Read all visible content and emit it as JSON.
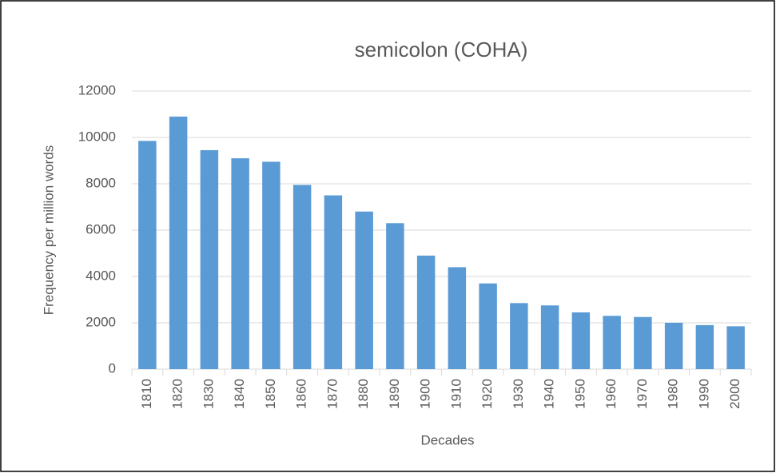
{
  "chart_data": {
    "type": "bar",
    "title": "semicolon (COHA)",
    "x_label": "Decades",
    "y_label": "Frequency per million words",
    "categories": [
      "1810",
      "1820",
      "1830",
      "1840",
      "1850",
      "1860",
      "1870",
      "1880",
      "1890",
      "1900",
      "1910",
      "1920",
      "1930",
      "1940",
      "1950",
      "1960",
      "1970",
      "1980",
      "1990",
      "2000"
    ],
    "values": [
      9850,
      10900,
      9450,
      9100,
      8950,
      7950,
      7500,
      6800,
      6300,
      4900,
      4400,
      3700,
      2850,
      2750,
      2450,
      2300,
      2250,
      2000,
      1900,
      1850
    ],
    "color": "#5b9bd5",
    "ylim": [
      0,
      12000
    ],
    "yticks": [
      0,
      2000,
      4000,
      6000,
      8000,
      10000,
      12000
    ],
    "grid": true
  }
}
